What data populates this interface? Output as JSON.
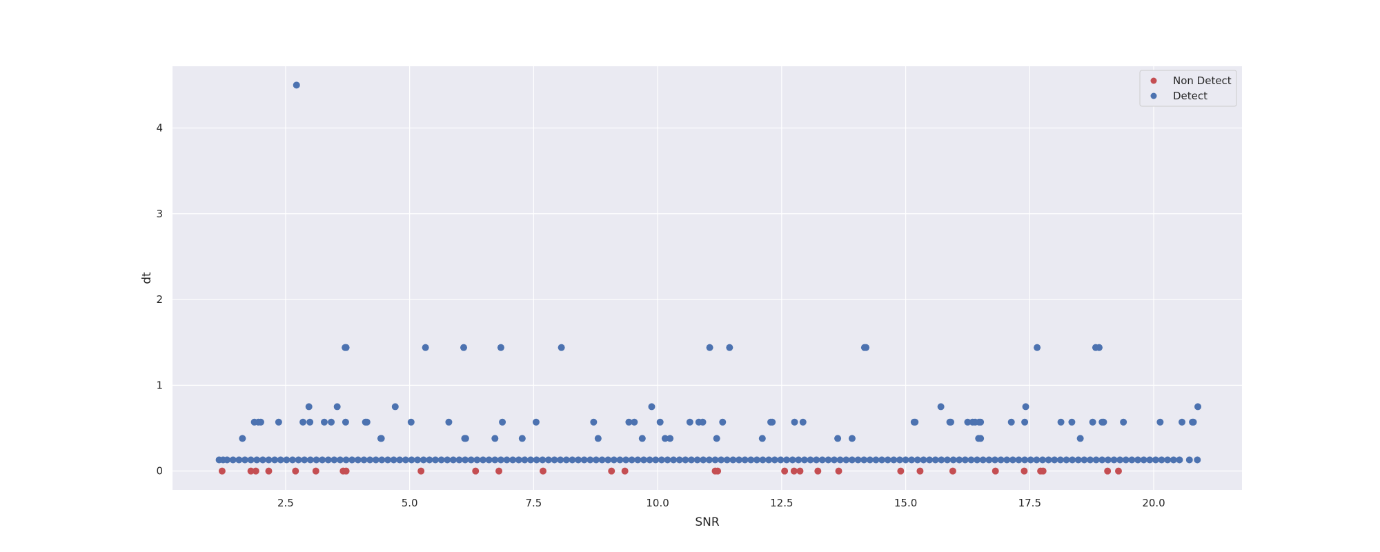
{
  "chart_data": {
    "type": "scatter",
    "title": "",
    "xlabel": "SNR",
    "ylabel": "dt",
    "xlim": [
      0.22,
      21.78
    ],
    "ylim": [
      -0.22,
      4.72
    ],
    "xticks": [
      2.5,
      5.0,
      7.5,
      10.0,
      12.5,
      15.0,
      17.5,
      20.0
    ],
    "xtick_labels": [
      "2.5",
      "5.0",
      "7.5",
      "10.0",
      "12.5",
      "15.0",
      "17.5",
      "20.0"
    ],
    "yticks": [
      0,
      1,
      2,
      3,
      4
    ],
    "ytick_labels": [
      "0",
      "1",
      "2",
      "3",
      "4"
    ],
    "grid": true,
    "legend_position": "top-right",
    "colors": {
      "plot_background": "#eaeaf2",
      "grid": "#ffffff",
      "non_detect": "#c44e52",
      "detect": "#4c72b0"
    },
    "series": [
      {
        "name": "Non Detect",
        "color": "#c44e52",
        "points": [
          [
            1.22,
            0
          ],
          [
            1.8,
            0
          ],
          [
            1.9,
            0
          ],
          [
            2.16,
            0
          ],
          [
            2.7,
            0
          ],
          [
            3.11,
            0
          ],
          [
            3.66,
            0
          ],
          [
            3.72,
            0
          ],
          [
            5.23,
            0
          ],
          [
            6.33,
            0
          ],
          [
            6.8,
            0
          ],
          [
            7.69,
            0
          ],
          [
            9.07,
            0
          ],
          [
            9.34,
            0
          ],
          [
            11.16,
            0
          ],
          [
            11.21,
            0
          ],
          [
            12.56,
            0
          ],
          [
            12.75,
            0
          ],
          [
            12.87,
            0
          ],
          [
            13.23,
            0
          ],
          [
            13.65,
            0
          ],
          [
            14.9,
            0
          ],
          [
            15.29,
            0
          ],
          [
            15.95,
            0
          ],
          [
            16.81,
            0
          ],
          [
            17.39,
            0
          ],
          [
            17.72,
            0
          ],
          [
            17.77,
            0
          ],
          [
            19.07,
            0
          ],
          [
            19.29,
            0
          ]
        ]
      },
      {
        "name": "Detect",
        "color": "#4c72b0",
        "points": [
          [
            2.72,
            4.5
          ],
          [
            3.7,
            1.44
          ],
          [
            3.72,
            1.44
          ],
          [
            5.32,
            1.44
          ],
          [
            6.09,
            1.44
          ],
          [
            6.84,
            1.44
          ],
          [
            8.06,
            1.44
          ],
          [
            11.05,
            1.44
          ],
          [
            11.45,
            1.44
          ],
          [
            14.17,
            1.44
          ],
          [
            14.2,
            1.44
          ],
          [
            17.65,
            1.44
          ],
          [
            18.83,
            1.44
          ],
          [
            18.9,
            1.44
          ],
          [
            2.97,
            0.75
          ],
          [
            3.54,
            0.75
          ],
          [
            4.71,
            0.75
          ],
          [
            9.88,
            0.75
          ],
          [
            15.71,
            0.75
          ],
          [
            17.42,
            0.75
          ],
          [
            20.89,
            0.75
          ],
          [
            1.87,
            0.57
          ],
          [
            1.95,
            0.57
          ],
          [
            2.0,
            0.57
          ],
          [
            2.36,
            0.57
          ],
          [
            2.85,
            0.57
          ],
          [
            2.99,
            0.57
          ],
          [
            3.28,
            0.57
          ],
          [
            3.42,
            0.57
          ],
          [
            3.71,
            0.57
          ],
          [
            4.11,
            0.57
          ],
          [
            4.14,
            0.57
          ],
          [
            5.03,
            0.57
          ],
          [
            5.79,
            0.57
          ],
          [
            6.87,
            0.57
          ],
          [
            7.55,
            0.57
          ],
          [
            8.71,
            0.57
          ],
          [
            9.42,
            0.57
          ],
          [
            9.53,
            0.57
          ],
          [
            10.05,
            0.57
          ],
          [
            10.65,
            0.57
          ],
          [
            10.83,
            0.57
          ],
          [
            10.91,
            0.57
          ],
          [
            11.31,
            0.57
          ],
          [
            12.28,
            0.57
          ],
          [
            12.31,
            0.57
          ],
          [
            12.76,
            0.57
          ],
          [
            12.93,
            0.57
          ],
          [
            15.17,
            0.57
          ],
          [
            15.19,
            0.57
          ],
          [
            15.89,
            0.57
          ],
          [
            15.91,
            0.57
          ],
          [
            16.25,
            0.57
          ],
          [
            16.35,
            0.57
          ],
          [
            16.4,
            0.57
          ],
          [
            16.48,
            0.57
          ],
          [
            16.51,
            0.57
          ],
          [
            17.13,
            0.57
          ],
          [
            17.4,
            0.57
          ],
          [
            18.13,
            0.57
          ],
          [
            18.35,
            0.57
          ],
          [
            18.77,
            0.57
          ],
          [
            18.96,
            0.57
          ],
          [
            18.99,
            0.57
          ],
          [
            19.39,
            0.57
          ],
          [
            20.13,
            0.57
          ],
          [
            20.57,
            0.57
          ],
          [
            20.78,
            0.57
          ],
          [
            20.8,
            0.57
          ],
          [
            1.63,
            0.38
          ],
          [
            4.42,
            0.38
          ],
          [
            4.43,
            0.38
          ],
          [
            6.11,
            0.38
          ],
          [
            6.13,
            0.38
          ],
          [
            6.72,
            0.38
          ],
          [
            7.27,
            0.38
          ],
          [
            8.8,
            0.38
          ],
          [
            9.69,
            0.38
          ],
          [
            10.15,
            0.38
          ],
          [
            10.25,
            0.38
          ],
          [
            11.19,
            0.38
          ],
          [
            12.11,
            0.38
          ],
          [
            13.63,
            0.38
          ],
          [
            13.92,
            0.38
          ],
          [
            16.47,
            0.38
          ],
          [
            16.51,
            0.38
          ],
          [
            18.52,
            0.38
          ],
          [
            1.16,
            0.13
          ],
          [
            1.24,
            0.13
          ],
          [
            1.32,
            0.13
          ],
          [
            1.44,
            0.13
          ],
          [
            1.56,
            0.13
          ],
          [
            1.68,
            0.13
          ],
          [
            1.8,
            0.13
          ],
          [
            1.92,
            0.13
          ],
          [
            2.04,
            0.13
          ],
          [
            2.16,
            0.13
          ],
          [
            2.28,
            0.13
          ],
          [
            2.4,
            0.13
          ],
          [
            2.52,
            0.13
          ],
          [
            2.64,
            0.13
          ],
          [
            2.76,
            0.13
          ],
          [
            2.88,
            0.13
          ],
          [
            3.0,
            0.13
          ],
          [
            3.12,
            0.13
          ],
          [
            3.24,
            0.13
          ],
          [
            3.36,
            0.13
          ],
          [
            3.48,
            0.13
          ],
          [
            3.6,
            0.13
          ],
          [
            3.72,
            0.13
          ],
          [
            3.84,
            0.13
          ],
          [
            3.96,
            0.13
          ],
          [
            4.08,
            0.13
          ],
          [
            4.2,
            0.13
          ],
          [
            4.32,
            0.13
          ],
          [
            4.44,
            0.13
          ],
          [
            4.56,
            0.13
          ],
          [
            4.68,
            0.13
          ],
          [
            4.8,
            0.13
          ],
          [
            4.92,
            0.13
          ],
          [
            5.04,
            0.13
          ],
          [
            5.16,
            0.13
          ],
          [
            5.28,
            0.13
          ],
          [
            5.4,
            0.13
          ],
          [
            5.52,
            0.13
          ],
          [
            5.64,
            0.13
          ],
          [
            5.76,
            0.13
          ],
          [
            5.88,
            0.13
          ],
          [
            6.0,
            0.13
          ],
          [
            6.12,
            0.13
          ],
          [
            6.24,
            0.13
          ],
          [
            6.36,
            0.13
          ],
          [
            6.48,
            0.13
          ],
          [
            6.6,
            0.13
          ],
          [
            6.72,
            0.13
          ],
          [
            6.84,
            0.13
          ],
          [
            6.96,
            0.13
          ],
          [
            7.08,
            0.13
          ],
          [
            7.2,
            0.13
          ],
          [
            7.32,
            0.13
          ],
          [
            7.44,
            0.13
          ],
          [
            7.56,
            0.13
          ],
          [
            7.68,
            0.13
          ],
          [
            7.8,
            0.13
          ],
          [
            7.92,
            0.13
          ],
          [
            8.04,
            0.13
          ],
          [
            8.16,
            0.13
          ],
          [
            8.28,
            0.13
          ],
          [
            8.4,
            0.13
          ],
          [
            8.52,
            0.13
          ],
          [
            8.64,
            0.13
          ],
          [
            8.76,
            0.13
          ],
          [
            8.88,
            0.13
          ],
          [
            9.0,
            0.13
          ],
          [
            9.12,
            0.13
          ],
          [
            9.24,
            0.13
          ],
          [
            9.36,
            0.13
          ],
          [
            9.48,
            0.13
          ],
          [
            9.6,
            0.13
          ],
          [
            9.72,
            0.13
          ],
          [
            9.84,
            0.13
          ],
          [
            9.96,
            0.13
          ],
          [
            10.08,
            0.13
          ],
          [
            10.2,
            0.13
          ],
          [
            10.32,
            0.13
          ],
          [
            10.44,
            0.13
          ],
          [
            10.56,
            0.13
          ],
          [
            10.68,
            0.13
          ],
          [
            10.8,
            0.13
          ],
          [
            10.92,
            0.13
          ],
          [
            11.04,
            0.13
          ],
          [
            11.16,
            0.13
          ],
          [
            11.28,
            0.13
          ],
          [
            11.4,
            0.13
          ],
          [
            11.52,
            0.13
          ],
          [
            11.64,
            0.13
          ],
          [
            11.76,
            0.13
          ],
          [
            11.88,
            0.13
          ],
          [
            12.0,
            0.13
          ],
          [
            12.12,
            0.13
          ],
          [
            12.24,
            0.13
          ],
          [
            12.36,
            0.13
          ],
          [
            12.48,
            0.13
          ],
          [
            12.6,
            0.13
          ],
          [
            12.72,
            0.13
          ],
          [
            12.84,
            0.13
          ],
          [
            12.96,
            0.13
          ],
          [
            13.08,
            0.13
          ],
          [
            13.2,
            0.13
          ],
          [
            13.32,
            0.13
          ],
          [
            13.44,
            0.13
          ],
          [
            13.56,
            0.13
          ],
          [
            13.68,
            0.13
          ],
          [
            13.8,
            0.13
          ],
          [
            13.92,
            0.13
          ],
          [
            14.04,
            0.13
          ],
          [
            14.16,
            0.13
          ],
          [
            14.28,
            0.13
          ],
          [
            14.4,
            0.13
          ],
          [
            14.52,
            0.13
          ],
          [
            14.64,
            0.13
          ],
          [
            14.76,
            0.13
          ],
          [
            14.88,
            0.13
          ],
          [
            15.0,
            0.13
          ],
          [
            15.12,
            0.13
          ],
          [
            15.24,
            0.13
          ],
          [
            15.36,
            0.13
          ],
          [
            15.48,
            0.13
          ],
          [
            15.6,
            0.13
          ],
          [
            15.72,
            0.13
          ],
          [
            15.84,
            0.13
          ],
          [
            15.96,
            0.13
          ],
          [
            16.08,
            0.13
          ],
          [
            16.2,
            0.13
          ],
          [
            16.32,
            0.13
          ],
          [
            16.44,
            0.13
          ],
          [
            16.56,
            0.13
          ],
          [
            16.68,
            0.13
          ],
          [
            16.8,
            0.13
          ],
          [
            16.92,
            0.13
          ],
          [
            17.04,
            0.13
          ],
          [
            17.16,
            0.13
          ],
          [
            17.28,
            0.13
          ],
          [
            17.4,
            0.13
          ],
          [
            17.52,
            0.13
          ],
          [
            17.64,
            0.13
          ],
          [
            17.76,
            0.13
          ],
          [
            17.88,
            0.13
          ],
          [
            18.0,
            0.13
          ],
          [
            18.12,
            0.13
          ],
          [
            18.24,
            0.13
          ],
          [
            18.36,
            0.13
          ],
          [
            18.48,
            0.13
          ],
          [
            18.6,
            0.13
          ],
          [
            18.72,
            0.13
          ],
          [
            18.84,
            0.13
          ],
          [
            18.96,
            0.13
          ],
          [
            19.08,
            0.13
          ],
          [
            19.2,
            0.13
          ],
          [
            19.32,
            0.13
          ],
          [
            19.44,
            0.13
          ],
          [
            19.56,
            0.13
          ],
          [
            19.68,
            0.13
          ],
          [
            19.8,
            0.13
          ],
          [
            19.92,
            0.13
          ],
          [
            20.04,
            0.13
          ],
          [
            20.16,
            0.13
          ],
          [
            20.28,
            0.13
          ],
          [
            20.4,
            0.13
          ],
          [
            20.52,
            0.13
          ],
          [
            20.72,
            0.13
          ],
          [
            20.88,
            0.13
          ]
        ]
      }
    ]
  }
}
